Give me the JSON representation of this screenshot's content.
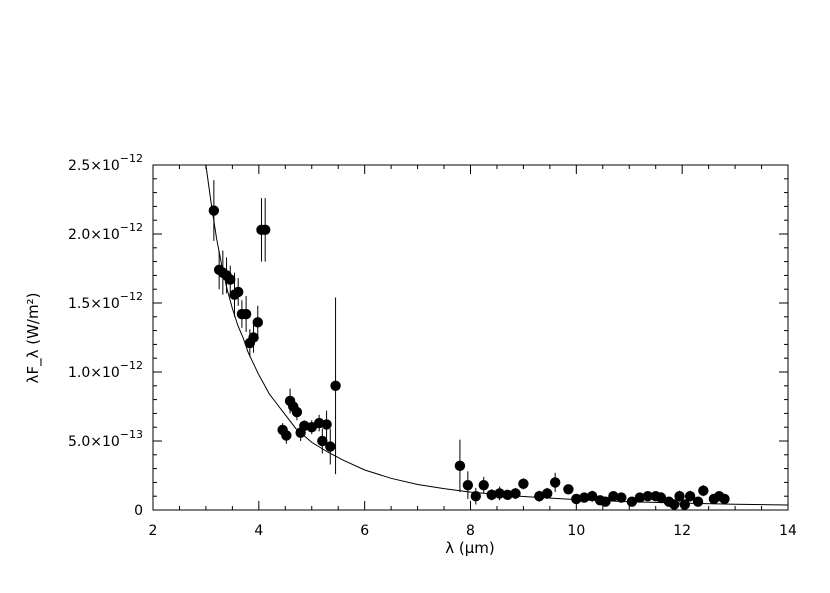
{
  "chart_data": {
    "type": "scatter",
    "title": "",
    "xlabel": "λ (μm)",
    "ylabel": "λF_λ (W/m²)",
    "xlim": [
      2,
      14
    ],
    "ylim": [
      0,
      2.5e-12
    ],
    "x_ticks": [
      2,
      4,
      6,
      8,
      10,
      12,
      14
    ],
    "x_tick_labels": [
      "2",
      "4",
      "6",
      "8",
      "10",
      "12",
      "14"
    ],
    "y_ticks": [
      0,
      5e-13,
      1e-12,
      1.5e-12,
      2e-12,
      2.5e-12
    ],
    "y_tick_labels": [
      {
        "mant": "0",
        "exp": ""
      },
      {
        "mant": "5.0×10",
        "exp": "−13"
      },
      {
        "mant": "1.0×10",
        "exp": "−12"
      },
      {
        "mant": "1.5×10",
        "exp": "−12"
      },
      {
        "mant": "2.0×10",
        "exp": "−12"
      },
      {
        "mant": "2.5×10",
        "exp": "−12"
      }
    ],
    "grid": false,
    "legend": "none",
    "colors": {
      "points": "#000000",
      "model": "#000000",
      "axes": "#000000"
    },
    "series": [
      {
        "kind": "points_with_errorbars",
        "x": [
          3.15,
          3.25,
          3.32,
          3.39,
          3.46,
          3.54,
          3.61,
          3.68,
          3.76,
          3.83,
          3.9,
          3.98,
          4.05,
          4.12,
          4.45,
          4.52,
          4.59,
          4.65,
          4.72,
          4.79,
          4.86,
          5.0,
          5.14,
          5.2,
          5.28,
          5.35,
          5.45,
          7.8,
          7.95,
          8.1,
          8.25,
          8.4,
          8.55,
          8.7,
          8.85,
          9.0,
          9.3,
          9.45,
          9.6,
          9.85,
          10.0,
          10.15,
          10.3,
          10.45,
          10.55,
          10.7,
          10.85,
          11.05,
          11.2,
          11.35,
          11.5,
          11.6,
          11.75,
          11.85,
          11.95,
          12.05,
          12.15,
          12.3,
          12.4,
          12.6,
          12.7,
          12.8
        ],
        "y": [
          2.17e-12,
          1.74e-12,
          1.72e-12,
          1.7e-12,
          1.67e-12,
          1.56e-12,
          1.58e-12,
          1.42e-12,
          1.42e-12,
          1.21e-12,
          1.25e-12,
          1.36e-12,
          2.03e-12,
          2.03e-12,
          5.8e-13,
          5.4e-13,
          7.9e-13,
          7.5e-13,
          7.1e-13,
          5.6e-13,
          6.1e-13,
          6e-13,
          6.3e-13,
          5e-13,
          6.2e-13,
          4.6e-13,
          9e-13,
          3.2e-13,
          1.8e-13,
          1e-13,
          1.8e-13,
          1.1e-13,
          1.2e-13,
          1.1e-13,
          1.2e-13,
          1.9e-13,
          1e-13,
          1.2e-13,
          2e-13,
          1.5e-13,
          8e-14,
          9e-14,
          1e-13,
          7e-14,
          6e-14,
          1e-13,
          9e-14,
          6e-14,
          9e-14,
          1e-13,
          1e-13,
          9e-14,
          6e-14,
          4e-14,
          1e-13,
          4e-14,
          1e-13,
          6e-14,
          1.4e-13,
          8e-14,
          1e-13,
          8e-14
        ],
        "err": [
          2.2e-13,
          1.4e-13,
          1.6e-13,
          1.3e-13,
          1e-13,
          1.6e-13,
          1e-13,
          1e-13,
          1.3e-13,
          1e-13,
          1.1e-13,
          1.2e-13,
          2.3e-13,
          2.3e-13,
          5e-14,
          6e-14,
          9e-14,
          6e-14,
          6e-14,
          6e-14,
          4e-14,
          5e-14,
          6e-14,
          9e-14,
          1e-13,
          1.3e-13,
          6.4e-13,
          1.9e-13,
          1e-13,
          6e-14,
          6e-14,
          4e-14,
          5e-14,
          3e-14,
          4e-14,
          4e-14,
          4e-14,
          4e-14,
          7e-14,
          3e-14,
          3e-14,
          3e-14,
          4e-14,
          3e-14,
          3e-14,
          3e-14,
          3e-14,
          3e-14,
          3e-14,
          3e-14,
          3e-14,
          4e-14,
          3e-14,
          3e-14,
          4e-14,
          3e-14,
          4e-14,
          3e-14,
          4e-14,
          3e-14,
          3e-14,
          3e-14
        ]
      },
      {
        "kind": "model_curve",
        "x": [
          3.0,
          3.1,
          3.2,
          3.3,
          3.4,
          3.5,
          3.6,
          3.7,
          3.8,
          3.9,
          4.0,
          4.1,
          4.2,
          4.3,
          4.5,
          4.7,
          5.0,
          5.3,
          5.6,
          6.0,
          6.5,
          7.0,
          7.5,
          8.0,
          8.5,
          9.0,
          10.0,
          11.0,
          12.0,
          13.0,
          14.0
        ],
        "y": [
          2.5e-12,
          2.22e-12,
          1.97e-12,
          1.77e-12,
          1.6e-12,
          1.46e-12,
          1.34e-12,
          1.25e-12,
          1.14e-12,
          1.06e-12,
          9.8e-13,
          9.1e-13,
          8.4e-13,
          7.9e-13,
          6.9e-13,
          5.9e-13,
          4.9e-13,
          4.2e-13,
          3.6e-13,
          2.9e-13,
          2.3e-13,
          1.85e-13,
          1.55e-13,
          1.3e-13,
          1.13e-13,
          9.8e-14,
          7.5e-14,
          6e-14,
          5e-14,
          4.2e-14,
          3.6e-14
        ]
      }
    ]
  }
}
